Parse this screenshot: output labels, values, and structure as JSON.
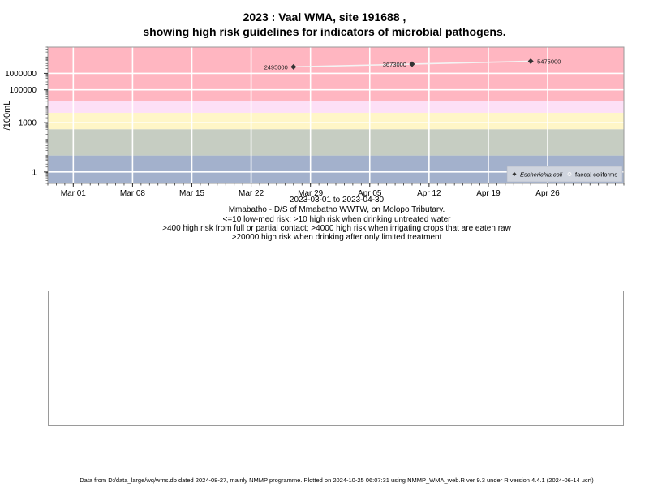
{
  "title": {
    "line1": "2023 : Vaal WMA, site 191688 ,",
    "line2": "showing high risk guidelines for indicators of microbial pathogens."
  },
  "chart_data": {
    "type": "scatter",
    "y_scale": "log",
    "ylabel": "/100mL",
    "xlim": [
      "2023-02-26",
      "2023-05-05"
    ],
    "ylim": [
      0.2,
      40000000
    ],
    "x_ticks": [
      {
        "date": "2023-03-01",
        "label": "Mar 01"
      },
      {
        "date": "2023-03-08",
        "label": "Mar 08"
      },
      {
        "date": "2023-03-15",
        "label": "Mar 15"
      },
      {
        "date": "2023-03-22",
        "label": "Mar 22"
      },
      {
        "date": "2023-03-29",
        "label": "Mar 29"
      },
      {
        "date": "2023-04-05",
        "label": "Apr 05"
      },
      {
        "date": "2023-04-12",
        "label": "Apr 12"
      },
      {
        "date": "2023-04-19",
        "label": "Apr 19"
      },
      {
        "date": "2023-04-26",
        "label": "Apr 26"
      }
    ],
    "y_ticks": [
      {
        "value": 1,
        "label": "1"
      },
      {
        "value": 1000,
        "label": "1000"
      },
      {
        "value": 100000,
        "label": "100000"
      },
      {
        "value": 1000000,
        "label": "1000000"
      }
    ],
    "bands": [
      {
        "from": 0.2,
        "to": 10,
        "color": "#a3b1cc"
      },
      {
        "from": 10,
        "to": 400,
        "color": "#c6cdc2"
      },
      {
        "from": 400,
        "to": 4000,
        "color": "#fff6c7"
      },
      {
        "from": 4000,
        "to": 20000,
        "color": "#fde0f6"
      },
      {
        "from": 20000,
        "to": 40000000,
        "color": "#ffb6c1"
      }
    ],
    "series": [
      {
        "name": "Escherichia coli",
        "marker": "filled-diamond",
        "color": "#333333",
        "points": [
          {
            "date": "2023-03-27",
            "value": 2495000,
            "label": "2495000",
            "label_side": "left"
          },
          {
            "date": "2023-04-10",
            "value": 3673000,
            "label": "3673000",
            "label_side": "left"
          },
          {
            "date": "2023-04-24",
            "value": 5475000,
            "label": "5475000",
            "label_side": "right"
          }
        ]
      },
      {
        "name": "faecal coliforms",
        "marker": "open-circle",
        "color": "#ffffff",
        "points": []
      }
    ],
    "trend_line_color": "#f4f4f4",
    "legend_position": "bottom-right",
    "grid": true
  },
  "caption": {
    "date_range": "2023-03-01 to 2023-04-30",
    "site": "Mmabatho - D/S of Mmabatho WWTW, on Molopo Tributary.",
    "risk1": "<=10 low-med risk; >10 high risk when drinking untreated water",
    "risk2": ">400 high risk from full or partial contact; >4000 high risk when irrigating crops that are eaten raw",
    "risk3": ">20000 high risk when drinking after only limited treatment"
  },
  "footer": "Data from D:/data_large/wq/wms.db dated 2024-08-27, mainly NMMP programme. Plotted on 2024-10-25 06:07:31 using NMMP_WMA_web.R ver 9.3 under R version 4.4.1 (2024-06-14 ucrt)"
}
